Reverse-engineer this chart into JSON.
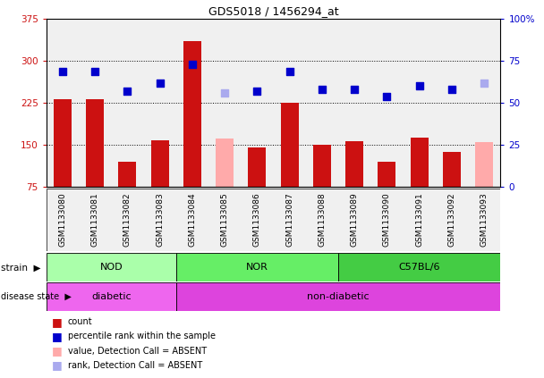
{
  "title": "GDS5018 / 1456294_at",
  "samples": [
    "GSM1133080",
    "GSM1133081",
    "GSM1133082",
    "GSM1133083",
    "GSM1133084",
    "GSM1133085",
    "GSM1133086",
    "GSM1133087",
    "GSM1133088",
    "GSM1133089",
    "GSM1133090",
    "GSM1133091",
    "GSM1133092",
    "GSM1133093"
  ],
  "counts": [
    232,
    232,
    120,
    158,
    335,
    162,
    145,
    226,
    150,
    157,
    120,
    163,
    137,
    155
  ],
  "absent_flags": [
    false,
    false,
    false,
    false,
    false,
    true,
    false,
    false,
    false,
    false,
    false,
    false,
    false,
    true
  ],
  "percentile_ranks": [
    69,
    69,
    57,
    62,
    73,
    56,
    57,
    69,
    58,
    58,
    54,
    60,
    58,
    62
  ],
  "absent_rank_flags": [
    false,
    false,
    false,
    false,
    false,
    true,
    false,
    false,
    false,
    false,
    false,
    false,
    false,
    true
  ],
  "ylim_left": [
    75,
    375
  ],
  "ylim_right": [
    0,
    100
  ],
  "yticks_left": [
    75,
    150,
    225,
    300,
    375
  ],
  "yticks_right": [
    0,
    25,
    50,
    75,
    100
  ],
  "ytick_labels_right": [
    "0",
    "25",
    "50",
    "75",
    "100%"
  ],
  "bar_color": "#cc1111",
  "bar_absent_color": "#ffaaaa",
  "dot_color": "#0000cc",
  "dot_absent_color": "#aaaaee",
  "fig_bg_color": "#ffffff",
  "plot_bg_color": "#f0f0f0",
  "strains": [
    {
      "label": "NOD",
      "start": 0,
      "end": 3,
      "color": "#aaffaa"
    },
    {
      "label": "NOR",
      "start": 4,
      "end": 8,
      "color": "#66ee66"
    },
    {
      "label": "C57BL/6",
      "start": 9,
      "end": 13,
      "color": "#44cc44"
    }
  ],
  "disease_states": [
    {
      "label": "diabetic",
      "start": 0,
      "end": 3,
      "color": "#ee66ee"
    },
    {
      "label": "non-diabetic",
      "start": 4,
      "end": 13,
      "color": "#dd44dd"
    }
  ],
  "legend_items": [
    {
      "color": "#cc1111",
      "label": "count"
    },
    {
      "color": "#0000cc",
      "label": "percentile rank within the sample"
    },
    {
      "color": "#ffaaaa",
      "label": "value, Detection Call = ABSENT"
    },
    {
      "color": "#aaaaee",
      "label": "rank, Detection Call = ABSENT"
    }
  ],
  "bar_width": 0.55,
  "dot_size": 35
}
